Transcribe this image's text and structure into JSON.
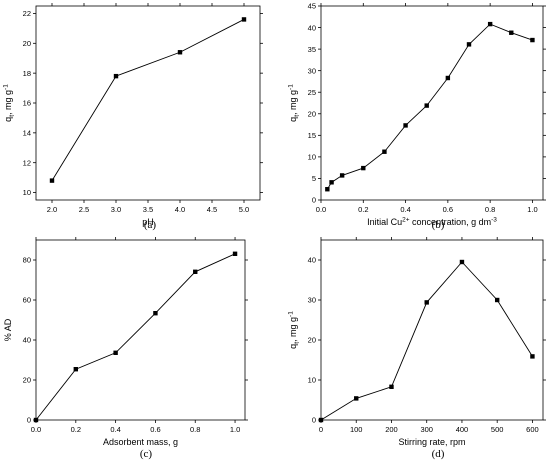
{
  "chart_data": [
    {
      "type": "line",
      "panel_label": "(a)",
      "xlabel": "pH",
      "ylabel_main": "q",
      "ylabel_sub": "t",
      "ylabel_rest": ", mg g",
      "ylabel_sup": "-1",
      "xlabel_parts": [],
      "xlim": [
        1.75,
        5.25
      ],
      "ylim": [
        9.5,
        22.5
      ],
      "xticks": [
        2.0,
        2.5,
        3.0,
        3.5,
        4.0,
        4.5,
        5.0
      ],
      "xtick_labels": [
        "2.0",
        "2.5",
        "3.0",
        "3.5",
        "4.0",
        "4.5",
        "5.0"
      ],
      "yticks": [
        10,
        12,
        14,
        16,
        18,
        20,
        22
      ],
      "ytick_labels": [
        "10",
        "12",
        "14",
        "16",
        "18",
        "20",
        "22"
      ],
      "series": [
        {
          "x": [
            2,
            3,
            4,
            5
          ],
          "y": [
            10.8,
            17.8,
            19.4,
            21.6
          ]
        }
      ]
    },
    {
      "type": "line",
      "panel_label": "(b)",
      "xlabel": "",
      "xlabel_parts": [
        "Initial Cu",
        "2+",
        " concentration, g dm",
        "-3"
      ],
      "ylabel_main": "q",
      "ylabel_sub": "t",
      "ylabel_rest": ", mg g",
      "ylabel_sup": "-1",
      "xlim": [
        0.0,
        1.05
      ],
      "ylim": [
        0,
        45
      ],
      "xticks": [
        0.0,
        0.2,
        0.4,
        0.6,
        0.8,
        1.0
      ],
      "xtick_labels": [
        "0.0",
        "0.2",
        "0.4",
        "0.6",
        "0.8",
        "1.0"
      ],
      "yticks": [
        0,
        5,
        10,
        15,
        20,
        25,
        30,
        35,
        40,
        45
      ],
      "ytick_labels": [
        "0",
        "5",
        "10",
        "15",
        "20",
        "25",
        "30",
        "35",
        "40",
        "45"
      ],
      "series": [
        {
          "x": [
            0.03,
            0.05,
            0.1,
            0.2,
            0.3,
            0.4,
            0.5,
            0.6,
            0.7,
            0.8,
            0.9,
            1.0
          ],
          "y": [
            2.5,
            4.1,
            5.7,
            7.4,
            11.2,
            17.3,
            21.9,
            28.3,
            36.1,
            40.8,
            38.8,
            37.1
          ]
        }
      ]
    },
    {
      "type": "line",
      "panel_label": "(c)",
      "xlabel": "Adsorbent mass, g",
      "xlabel_parts": [],
      "ylabel_main": "% AD",
      "ylabel_sub": "",
      "ylabel_rest": "",
      "ylabel_sup": "",
      "xlim": [
        0.0,
        1.05
      ],
      "ylim": [
        0,
        90
      ],
      "xticks": [
        0.0,
        0.2,
        0.4,
        0.6,
        0.8,
        1.0
      ],
      "xtick_labels": [
        "0.0",
        "0.2",
        "0.4",
        "0.6",
        "0.8",
        "1.0"
      ],
      "yticks": [
        0,
        20,
        40,
        60,
        80
      ],
      "ytick_labels": [
        "0",
        "20",
        "40",
        "60",
        "80"
      ],
      "series": [
        {
          "x": [
            0,
            0.2,
            0.4,
            0.6,
            0.8,
            1.0
          ],
          "y": [
            0,
            25.4,
            33.6,
            53.4,
            74.1,
            83.1
          ]
        }
      ]
    },
    {
      "type": "line",
      "panel_label": "(d)",
      "xlabel": "Stirring rate, rpm",
      "xlabel_parts": [],
      "ylabel_main": "q",
      "ylabel_sub": "t",
      "ylabel_rest": ", mg g",
      "ylabel_sup": "-1",
      "xlim": [
        0,
        630
      ],
      "ylim": [
        0,
        45
      ],
      "xticks": [
        0,
        100,
        200,
        300,
        400,
        500,
        600
      ],
      "xtick_labels": [
        "0",
        "100",
        "200",
        "300",
        "400",
        "500",
        "600"
      ],
      "yticks": [
        0,
        10,
        20,
        30,
        40
      ],
      "ytick_labels": [
        "0",
        "10",
        "20",
        "30",
        "40"
      ],
      "series": [
        {
          "x": [
            0,
            100,
            200,
            300,
            400,
            500,
            600
          ],
          "y": [
            0,
            5.4,
            8.3,
            29.4,
            39.5,
            30.0,
            15.9
          ]
        }
      ]
    }
  ]
}
